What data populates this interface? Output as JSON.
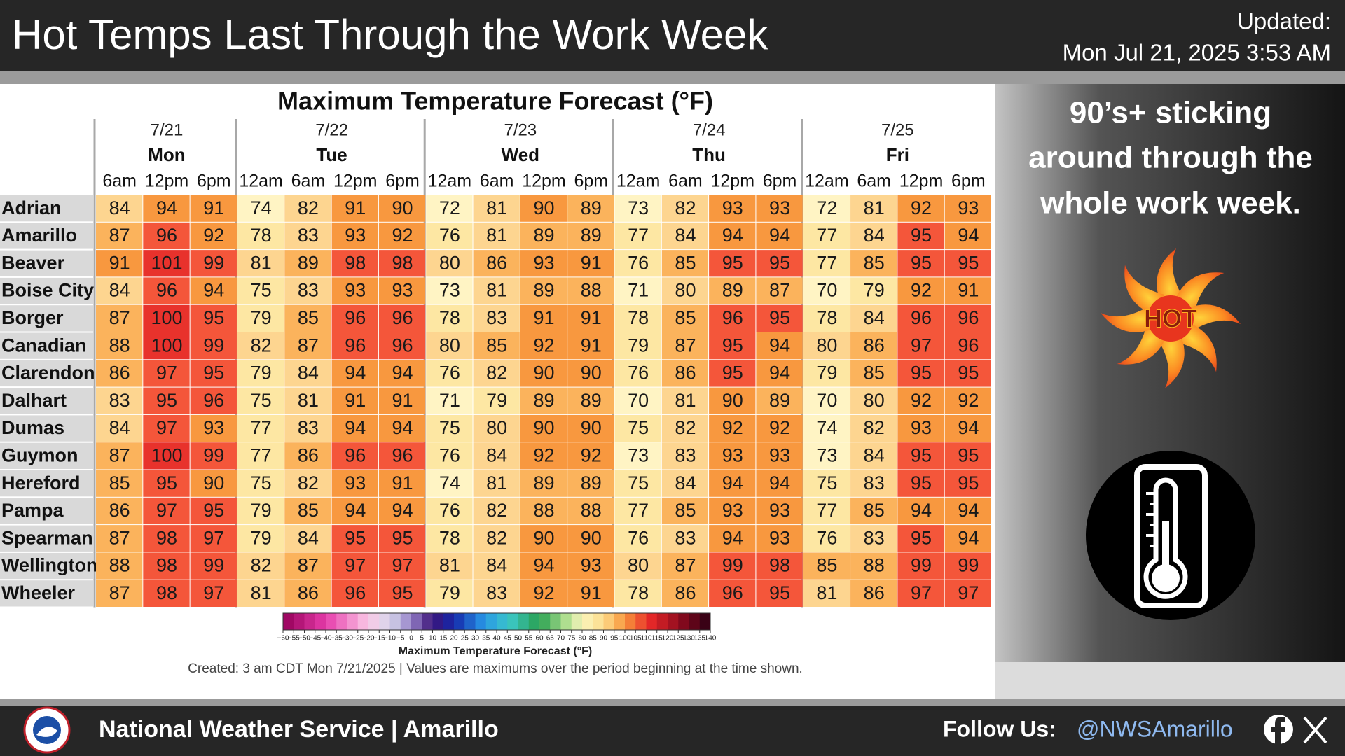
{
  "header": {
    "title": "Hot Temps Last Through the Work Week",
    "updated_label": "Updated:",
    "updated": "Mon Jul 21, 2025 3:53 AM"
  },
  "table": {
    "title": "Maximum Temperature Forecast (°F)",
    "days": [
      {
        "date": "7/21",
        "name": "Mon",
        "times": [
          "6am",
          "12pm",
          "6pm"
        ]
      },
      {
        "date": "7/22",
        "name": "Tue",
        "times": [
          "12am",
          "6am",
          "12pm",
          "6pm"
        ]
      },
      {
        "date": "7/23",
        "name": "Wed",
        "times": [
          "12am",
          "6am",
          "12pm",
          "6pm"
        ]
      },
      {
        "date": "7/24",
        "name": "Thu",
        "times": [
          "12am",
          "6am",
          "12pm",
          "6pm"
        ]
      },
      {
        "date": "7/25",
        "name": "Fri",
        "times": [
          "12am",
          "6am",
          "12pm",
          "6pm"
        ]
      }
    ],
    "rows": [
      {
        "name": "Adrian",
        "values": [
          84,
          94,
          91,
          74,
          82,
          91,
          90,
          72,
          81,
          90,
          89,
          73,
          82,
          93,
          93,
          72,
          81,
          92,
          93
        ]
      },
      {
        "name": "Amarillo",
        "values": [
          87,
          96,
          92,
          78,
          83,
          93,
          92,
          76,
          81,
          89,
          89,
          77,
          84,
          94,
          94,
          77,
          84,
          95,
          94
        ]
      },
      {
        "name": "Beaver",
        "values": [
          91,
          101,
          99,
          81,
          89,
          98,
          98,
          80,
          86,
          93,
          91,
          76,
          85,
          95,
          95,
          77,
          85,
          95,
          95
        ]
      },
      {
        "name": "Boise City",
        "values": [
          84,
          96,
          94,
          75,
          83,
          93,
          93,
          73,
          81,
          89,
          88,
          71,
          80,
          89,
          87,
          70,
          79,
          92,
          91
        ]
      },
      {
        "name": "Borger",
        "values": [
          87,
          100,
          95,
          79,
          85,
          96,
          96,
          78,
          83,
          91,
          91,
          78,
          85,
          96,
          95,
          78,
          84,
          96,
          96
        ]
      },
      {
        "name": "Canadian",
        "values": [
          88,
          100,
          99,
          82,
          87,
          96,
          96,
          80,
          85,
          92,
          91,
          79,
          87,
          95,
          94,
          80,
          86,
          97,
          96
        ]
      },
      {
        "name": "Clarendon",
        "values": [
          86,
          97,
          95,
          79,
          84,
          94,
          94,
          76,
          82,
          90,
          90,
          76,
          86,
          95,
          94,
          79,
          85,
          95,
          95
        ]
      },
      {
        "name": "Dalhart",
        "values": [
          83,
          95,
          96,
          75,
          81,
          91,
          91,
          71,
          79,
          89,
          89,
          70,
          81,
          90,
          89,
          70,
          80,
          92,
          92
        ]
      },
      {
        "name": "Dumas",
        "values": [
          84,
          97,
          93,
          77,
          83,
          94,
          94,
          75,
          80,
          90,
          90,
          75,
          82,
          92,
          92,
          74,
          82,
          93,
          94
        ]
      },
      {
        "name": "Guymon",
        "values": [
          87,
          100,
          99,
          77,
          86,
          96,
          96,
          76,
          84,
          92,
          92,
          73,
          83,
          93,
          93,
          73,
          84,
          95,
          95
        ]
      },
      {
        "name": "Hereford",
        "values": [
          85,
          95,
          90,
          75,
          82,
          93,
          91,
          74,
          81,
          89,
          89,
          75,
          84,
          94,
          94,
          75,
          83,
          95,
          95
        ]
      },
      {
        "name": "Pampa",
        "values": [
          86,
          97,
          95,
          79,
          85,
          94,
          94,
          76,
          82,
          88,
          88,
          77,
          85,
          93,
          93,
          77,
          85,
          94,
          94
        ]
      },
      {
        "name": "Spearman",
        "values": [
          87,
          98,
          97,
          79,
          84,
          95,
          95,
          78,
          82,
          90,
          90,
          76,
          83,
          94,
          93,
          76,
          83,
          95,
          94
        ]
      },
      {
        "name": "Wellington",
        "values": [
          88,
          98,
          99,
          82,
          87,
          97,
          97,
          81,
          84,
          94,
          93,
          80,
          87,
          99,
          98,
          85,
          88,
          99,
          99
        ]
      },
      {
        "name": "Wheeler",
        "values": [
          87,
          98,
          97,
          81,
          86,
          96,
          95,
          79,
          83,
          92,
          91,
          78,
          86,
          96,
          95,
          81,
          86,
          97,
          97
        ]
      }
    ]
  },
  "colorbar": {
    "label": "Maximum Temperature Forecast (°F)",
    "ticks": [
      {
        "value": -60,
        "label": "−60"
      },
      {
        "value": -55,
        "label": "−55"
      },
      {
        "value": -50,
        "label": "−50"
      },
      {
        "value": -45,
        "label": "−45"
      },
      {
        "value": -40,
        "label": "−40"
      },
      {
        "value": -35,
        "label": "−35"
      },
      {
        "value": -30,
        "label": "−30"
      },
      {
        "value": -25,
        "label": "−25"
      },
      {
        "value": -20,
        "label": "−20"
      },
      {
        "value": -15,
        "label": "−15"
      },
      {
        "value": -10,
        "label": "−10"
      },
      {
        "value": -5,
        "label": "−5"
      },
      0,
      5,
      10,
      15,
      20,
      25,
      30,
      35,
      40,
      45,
      50,
      55,
      60,
      65,
      70,
      75,
      80,
      85,
      90,
      95,
      100,
      105,
      110,
      115,
      120,
      125,
      130,
      135,
      140
    ]
  },
  "note": "Created: 3 am CDT Mon 7/21/2025  |  Values are maximums over the period beginning at the time shown.",
  "sidebar": {
    "message": [
      "90’s+ sticking",
      "around through the",
      "whole work week."
    ],
    "icon_text": "HOT"
  },
  "footer": {
    "office": "National Weather Service | Amarillo",
    "follow": "Follow Us:",
    "handle": "@NWSAmarillo"
  }
}
